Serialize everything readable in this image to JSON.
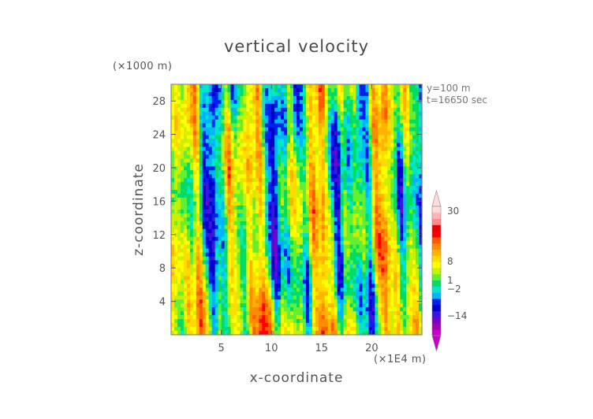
{
  "chart_data": {
    "type": "heatmap",
    "title": "vertical velocity",
    "xlabel": "x-coordinate",
    "ylabel": "z-coordinate",
    "x_unit_label": "(×1E4 m)",
    "y_unit_label": "(×1000 m)",
    "annotations": [
      "y=100 m",
      "t=16650 sec"
    ],
    "x_ticks": [
      5,
      10,
      15,
      20
    ],
    "y_ticks": [
      4,
      8,
      12,
      16,
      20,
      24,
      28
    ],
    "xlim": [
      0,
      25
    ],
    "ylim": [
      0,
      30
    ],
    "colorbar": {
      "tick_labels": [
        "30",
        "8",
        "1",
        "−2",
        "−14"
      ],
      "tick_values": [
        30,
        8,
        1,
        -2,
        -14
      ],
      "extend": "both",
      "colors": [
        "#c800c8",
        "#a000b4",
        "#7800c8",
        "#3c14dc",
        "#0000c8",
        "#0020f0",
        "#00b4ff",
        "#00e6c8",
        "#00dc64",
        "#64f032",
        "#c8f000",
        "#ffff00",
        "#ffdc00",
        "#ffb400",
        "#ff8c00",
        "#ff5a00",
        "#ff0000",
        "#e60000",
        "#ff8c8c",
        "#ffb4b4",
        "#ffdcdc"
      ]
    }
  }
}
